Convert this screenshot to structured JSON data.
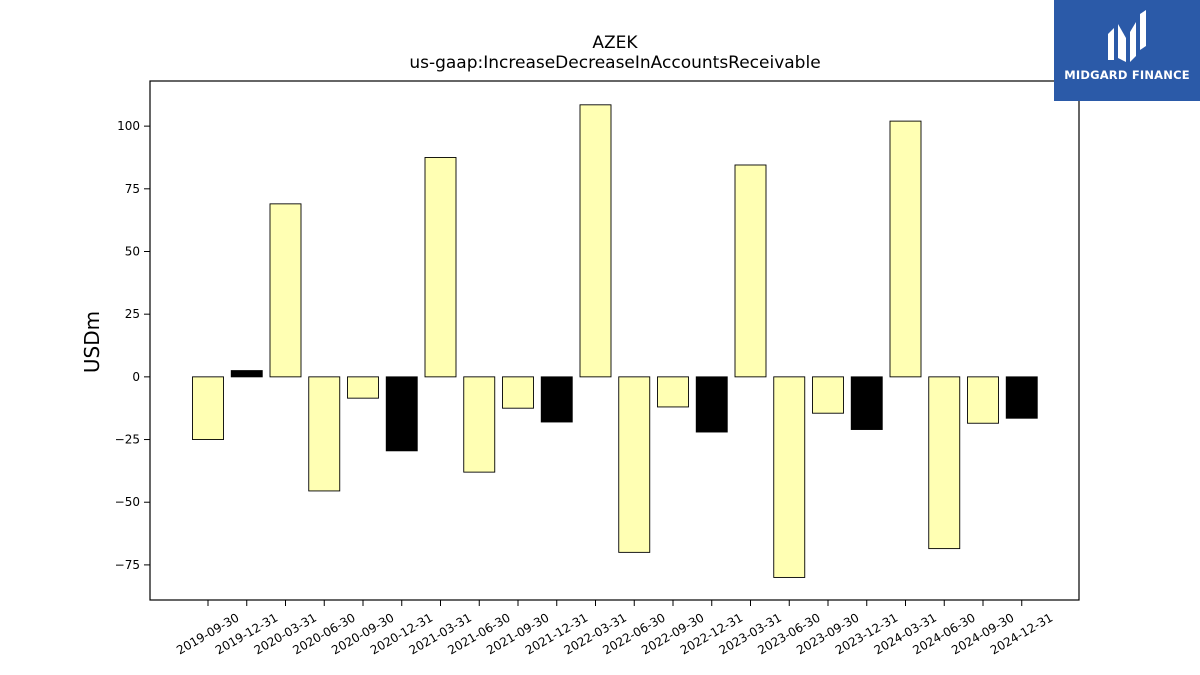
{
  "chart_data": {
    "type": "bar",
    "title": "AZEK",
    "subtitle": "us-gaap:IncreaseDecreaseInAccountsReceivable",
    "ylabel": "USDm",
    "xlabel": "",
    "ylim": [
      -89,
      118
    ],
    "yticks": [
      100,
      75,
      50,
      25,
      0,
      -25,
      -50,
      -75
    ],
    "ytick_labels": [
      "100",
      "75",
      "50",
      "25",
      "0",
      "−25",
      "−50",
      "−75"
    ],
    "grid": false,
    "categories": [
      "2019-09-30",
      "2019-12-31",
      "2020-03-31",
      "2020-06-30",
      "2020-09-30",
      "2020-12-31",
      "2021-03-31",
      "2021-06-30",
      "2021-09-30",
      "2021-12-31",
      "2022-03-31",
      "2022-06-30",
      "2022-09-30",
      "2022-12-31",
      "2023-03-31",
      "2023-06-30",
      "2023-09-30",
      "2023-12-31",
      "2024-03-31",
      "2024-06-30",
      "2024-09-30",
      "2024-12-31"
    ],
    "values": [
      -25,
      2.5,
      69,
      -45.5,
      -8.5,
      -29.5,
      87.5,
      -38,
      -12.5,
      -18,
      108.5,
      -70,
      -12,
      -22,
      84.5,
      -80,
      -14.5,
      -21,
      102,
      -68.5,
      -18.5,
      -16.5
    ],
    "bar_colors": [
      "#ffffb3",
      "#000000",
      "#ffffb3",
      "#ffffb3",
      "#ffffb3",
      "#000000",
      "#ffffb3",
      "#ffffb3",
      "#ffffb3",
      "#000000",
      "#ffffb3",
      "#ffffb3",
      "#ffffb3",
      "#000000",
      "#ffffb3",
      "#ffffb3",
      "#ffffb3",
      "#000000",
      "#ffffb3",
      "#ffffb3",
      "#ffffb3",
      "#000000"
    ]
  },
  "logo": {
    "text": "MIDGARD FINANCE",
    "background": "#2b5aa8"
  }
}
